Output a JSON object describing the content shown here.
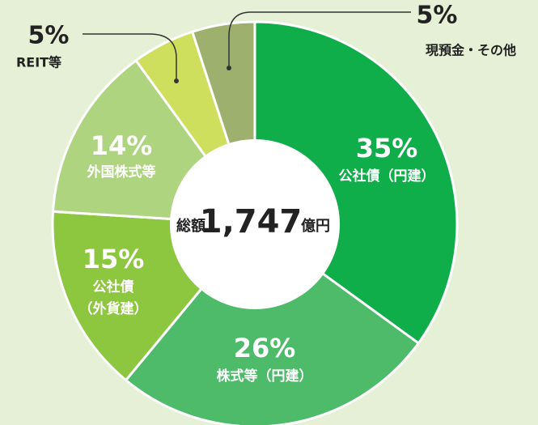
{
  "chart_data": {
    "type": "donut",
    "categories": [
      "公社債（円建）",
      "株式等（円建）",
      "公社債（外貨建）",
      "外国株式等",
      "REIT等",
      "現預金・その他"
    ],
    "values": [
      35,
      26,
      15,
      14,
      5,
      5
    ],
    "value_labels": [
      "35%",
      "26%",
      "15%",
      "14%",
      "5%",
      "5%"
    ],
    "colors": [
      "#0fae4a",
      "#4dbb6a",
      "#8dc63f",
      "#aed47f",
      "#cddf5c",
      "#9db06e"
    ],
    "center_text": [
      "総額",
      "1,747",
      "億円"
    ]
  }
}
